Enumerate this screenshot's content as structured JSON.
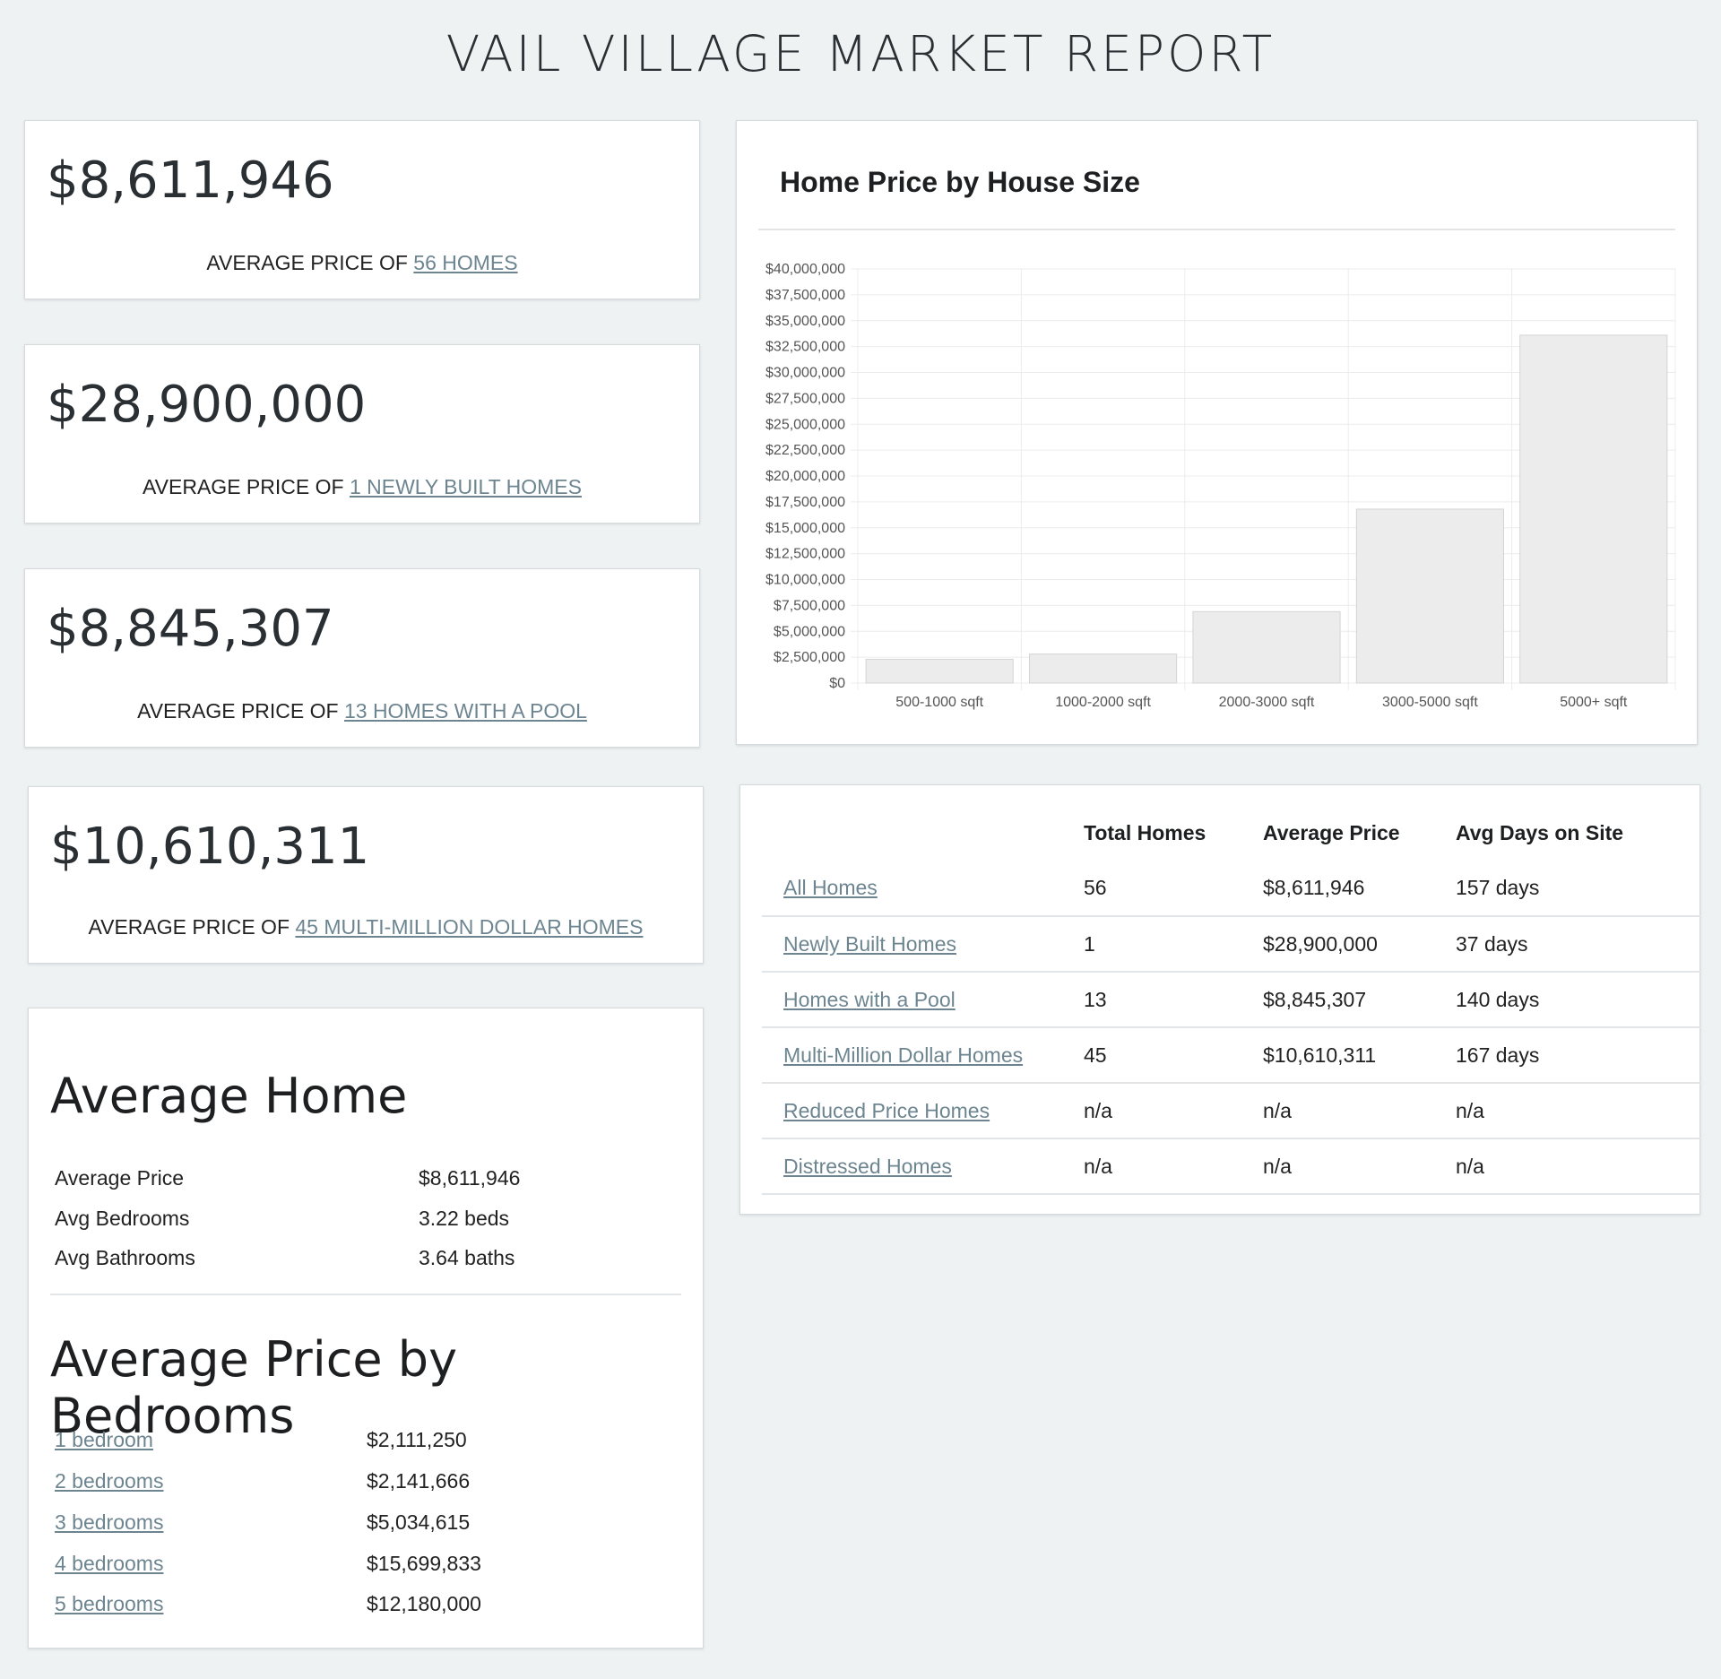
{
  "title": "VAIL VILLAGE MARKET REPORT",
  "stats": [
    {
      "value": "$8,611,946",
      "prefix": "AVERAGE PRICE OF ",
      "link": "56 HOMES"
    },
    {
      "value": "$28,900,000",
      "prefix": "AVERAGE PRICE OF ",
      "link": "1 NEWLY BUILT HOMES"
    },
    {
      "value": "$8,845,307",
      "prefix": "AVERAGE PRICE OF ",
      "link": "13 HOMES WITH A POOL"
    },
    {
      "value": "$10,610,311",
      "prefix": "AVERAGE PRICE OF ",
      "link": "45 MULTI-MILLION DOLLAR HOMES"
    }
  ],
  "chart_data": {
    "type": "bar",
    "title": "Home Price by House Size",
    "categories": [
      "500-1000 sqft",
      "1000-2000 sqft",
      "2000-3000 sqft",
      "3000-5000 sqft",
      "5000+ sqft"
    ],
    "values": [
      2300000,
      2800000,
      6900000,
      16800000,
      33600000
    ],
    "ylim": [
      0,
      40000000
    ],
    "yticks": [
      "$0",
      "$2,500,000",
      "$5,000,000",
      "$7,500,000",
      "$10,000,000",
      "$12,500,000",
      "$15,000,000",
      "$17,500,000",
      "$20,000,000",
      "$22,500,000",
      "$25,000,000",
      "$27,500,000",
      "$30,000,000",
      "$32,500,000",
      "$35,000,000",
      "$37,500,000",
      "$40,000,000"
    ],
    "grid": true,
    "legend": "none",
    "bar_color": "#ececec"
  },
  "summary_table": {
    "headers": [
      "",
      "Total Homes",
      "Average Price",
      "Avg Days on Site"
    ],
    "rows": [
      {
        "label": "All Homes",
        "total": "56",
        "avg": "$8,611,946",
        "days": "157 days"
      },
      {
        "label": "Newly Built Homes",
        "total": "1",
        "avg": "$28,900,000",
        "days": "37 days"
      },
      {
        "label": "Homes with a Pool",
        "total": "13",
        "avg": "$8,845,307",
        "days": "140 days"
      },
      {
        "label": "Multi-Million Dollar Homes",
        "total": "45",
        "avg": "$10,610,311",
        "days": "167 days"
      },
      {
        "label": "Reduced Price Homes",
        "total": "n/a",
        "avg": "n/a",
        "days": "n/a"
      },
      {
        "label": "Distressed Homes",
        "total": "n/a",
        "avg": "n/a",
        "days": "n/a"
      }
    ]
  },
  "average_home": {
    "heading": "Average Home",
    "rows": [
      {
        "label": "Average Price",
        "value": "$8,611,946"
      },
      {
        "label": "Avg Bedrooms",
        "value": "3.22 beds"
      },
      {
        "label": "Avg Bathrooms",
        "value": "3.64 baths"
      }
    ]
  },
  "bedrooms": {
    "heading": "Average Price by Bedrooms",
    "rows": [
      {
        "label": "1 bedroom",
        "value": "$2,111,250"
      },
      {
        "label": "2 bedrooms",
        "value": "$2,141,666"
      },
      {
        "label": "3 bedrooms",
        "value": "$5,034,615"
      },
      {
        "label": "4 bedrooms",
        "value": "$15,699,833"
      },
      {
        "label": "5 bedrooms",
        "value": "$12,180,000"
      }
    ]
  }
}
